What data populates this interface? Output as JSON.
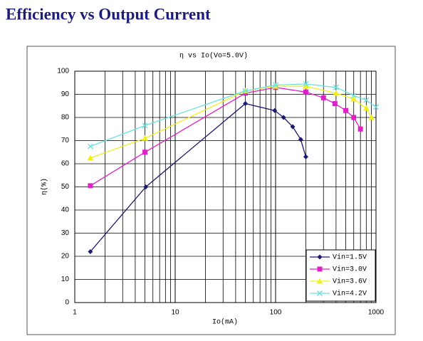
{
  "chart_data": {
    "type": "line",
    "title": "Efficiency vs Output Current",
    "subtitle": "η vs Io(Vo=5.0V)",
    "x_label": "Io(mA)",
    "y_label": "η(%)",
    "xscale": "log",
    "xlim": [
      1,
      1000
    ],
    "xticks": [
      1,
      10,
      100,
      1000
    ],
    "ylim": [
      0,
      100
    ],
    "yticks": [
      0,
      10,
      20,
      30,
      40,
      50,
      60,
      70,
      80,
      90,
      100
    ],
    "grid": true,
    "legend": "lower right",
    "series": [
      {
        "name": "Vin=1.5V",
        "color": "#1a1a6e",
        "marker": "diamond",
        "x": [
          1.43,
          5.1,
          50,
          98,
          120,
          148,
          178,
          200
        ],
        "values": [
          22,
          50,
          86,
          83,
          80,
          76,
          70.5,
          63
        ]
      },
      {
        "name": "Vin=3.0V",
        "color": "#e020c8",
        "marker": "square",
        "x": [
          1.43,
          5,
          50,
          100,
          200,
          300,
          390,
          500,
          600,
          700
        ],
        "values": [
          50.5,
          65,
          90.5,
          93,
          91,
          88.5,
          86,
          83,
          80,
          75
        ]
      },
      {
        "name": "Vin=3.6V",
        "color": "#f0f020",
        "marker": "triangle",
        "x": [
          1.43,
          5,
          50,
          100,
          200,
          400,
          600,
          800,
          900
        ],
        "values": [
          62.5,
          71,
          91.5,
          93.5,
          93.5,
          90.5,
          88,
          84,
          80
        ]
      },
      {
        "name": "Vin=4.2V",
        "color": "#70e0e0",
        "marker": "x",
        "x": [
          1.43,
          5,
          50,
          100,
          200,
          400,
          600,
          800,
          1000
        ],
        "values": [
          67.5,
          76.5,
          91.5,
          94,
          94.5,
          93,
          89.5,
          87.5,
          84.5
        ]
      }
    ]
  }
}
